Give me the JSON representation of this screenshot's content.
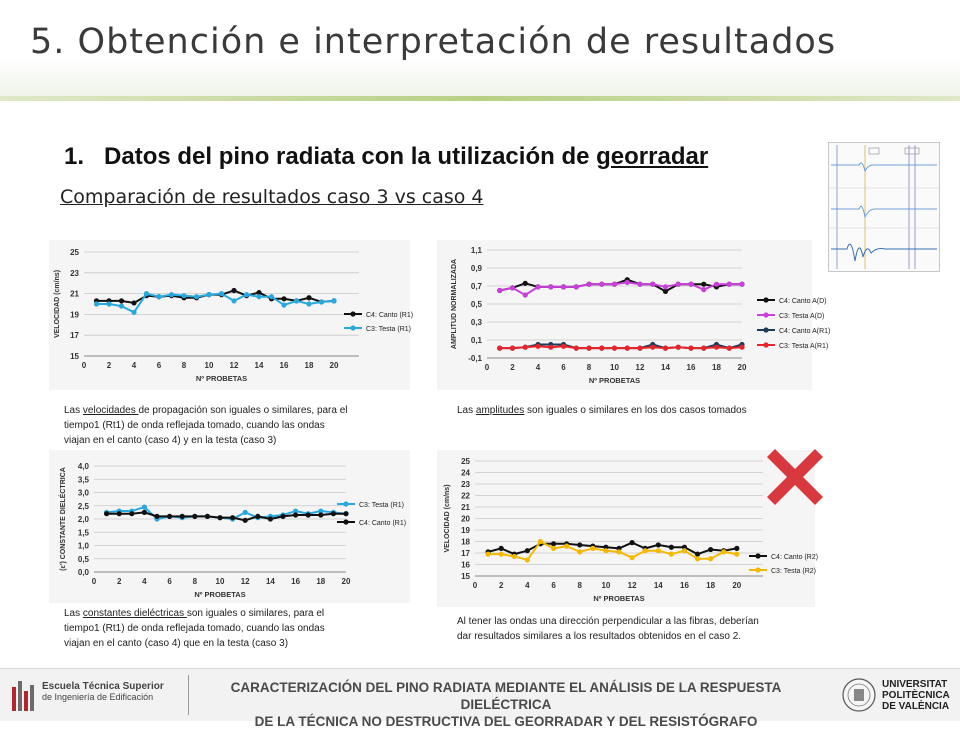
{
  "slide": {
    "title": "5. Obtención e interpretación de resultados",
    "heading_number": "1.",
    "heading_text": "Datos del pino radiata con la utilización de ",
    "heading_underlined": "georradar",
    "subtitle": "Comparación de resultados caso 3 vs caso 4"
  },
  "captions": {
    "c1_pre": "Las ",
    "c1_u": "velocidades ",
    "c1_rest1": "de propagación son iguales o similares, para el",
    "c1_line2": "tiempo1 (Rt1) de onda reflejada tomado, cuando las ondas",
    "c1_line3": "viajan en el canto (caso 4) y en la testa (caso 3)",
    "c2_pre": "Las ",
    "c2_u": "amplitudes",
    "c2_rest": " son iguales o similares en los dos casos tomados",
    "c3_pre": "Las ",
    "c3_u": "constantes dieléctricas ",
    "c3_rest1": "son iguales o similares, para el",
    "c3_line2": "tiempo1 (Rt1) de onda reflejada tomado, cuando las ondas",
    "c3_line3": "viajan en el canto (caso 4) que en la testa (caso 3)",
    "c4_line1": "Al tener las ondas una dirección perpendicular a las fibras, deberían",
    "c4_line2": "dar resultados similares a los resultados obtenidos en el caso 2."
  },
  "footer": {
    "school_line1": "Escuela Técnica Superior",
    "school_line2": "de Ingeniería de Edificación",
    "title_line1": "CARACTERIZACIÓN DEL PINO RADIATA MEDIANTE EL ANÁLISIS DE LA RESPUESTA DIELÉCTRICA",
    "title_line2": "DE LA TÉCNICA NO DESTRUCTIVA DEL GEORRADAR Y DEL RESISTÓGRAFO",
    "uni_line1": "UNIVERSITAT",
    "uni_line2": "POLITÈCNICA",
    "uni_line3": "DE VALÈNCIA"
  },
  "colors": {
    "black_series": "#111111",
    "cyan_series": "#29a8e0",
    "magenta_series": "#c83fd9",
    "red_series": "#e8242b",
    "yellow_series": "#f5b800",
    "x_mark": "#d9393e"
  },
  "chart_data": [
    {
      "type": "line",
      "ylabel": "VELOCIDAD (cm/ns)",
      "xlabel": "Nº PROBETAS",
      "ylim": [
        15,
        25
      ],
      "yticks": [
        15,
        17,
        19,
        21,
        23,
        25
      ],
      "xlim": [
        0,
        22
      ],
      "xticks": [
        0,
        2,
        4,
        6,
        8,
        10,
        12,
        14,
        16,
        18,
        20
      ],
      "x": [
        1,
        2,
        3,
        4,
        5,
        6,
        7,
        8,
        9,
        10,
        11,
        12,
        13,
        14,
        15,
        16,
        17,
        18,
        19,
        20
      ],
      "series": [
        {
          "name": "C4: Canto (R1)",
          "color": "#111111",
          "values": [
            20.3,
            20.3,
            20.3,
            20.1,
            20.8,
            20.7,
            20.8,
            20.6,
            20.6,
            20.9,
            20.9,
            21.3,
            20.8,
            21.1,
            20.5,
            20.5,
            20.3,
            20.6,
            20.2,
            20.3
          ]
        },
        {
          "name": "C3: Testa (R1)",
          "color": "#29a8e0",
          "values": [
            20.0,
            20.0,
            19.8,
            19.2,
            21.0,
            20.7,
            20.9,
            20.8,
            20.7,
            20.9,
            21.0,
            20.3,
            20.9,
            20.7,
            20.7,
            19.9,
            20.3,
            20.0,
            20.2,
            20.3
          ]
        }
      ]
    },
    {
      "type": "line",
      "ylabel": "AMPLITUD NORMALIZADA",
      "xlabel": "Nº PROBETAS",
      "ylim": [
        -0.1,
        1.1
      ],
      "yticks": [
        "-0,1",
        "0,1",
        "0,3",
        "0,5",
        "0,7",
        "0,9",
        "1,1"
      ],
      "ytick_values": [
        -0.1,
        0.1,
        0.3,
        0.5,
        0.7,
        0.9,
        1.1
      ],
      "xlim": [
        0,
        20
      ],
      "xticks": [
        0,
        2,
        4,
        6,
        8,
        10,
        12,
        14,
        16,
        18,
        20
      ],
      "x": [
        1,
        2,
        3,
        4,
        5,
        6,
        7,
        8,
        9,
        10,
        11,
        12,
        13,
        14,
        15,
        16,
        17,
        18,
        19,
        20
      ],
      "series": [
        {
          "name": "C4: Canto A(D)",
          "color": "#111111",
          "values": [
            0.65,
            0.68,
            0.73,
            0.69,
            0.69,
            0.69,
            0.69,
            0.72,
            0.72,
            0.72,
            0.77,
            0.72,
            0.72,
            0.64,
            0.72,
            0.72,
            0.72,
            0.69,
            0.72,
            0.72
          ]
        },
        {
          "name": "C3: Testa A(D)",
          "color": "#c83fd9",
          "values": [
            0.65,
            0.68,
            0.6,
            0.69,
            0.69,
            0.69,
            0.69,
            0.72,
            0.72,
            0.72,
            0.74,
            0.72,
            0.72,
            0.69,
            0.72,
            0.72,
            0.66,
            0.72,
            0.72,
            0.72
          ]
        },
        {
          "name": "C4: Canto A(R1)",
          "color": "#1d3c5a",
          "values": [
            0.01,
            0.01,
            0.02,
            0.05,
            0.05,
            0.05,
            0.01,
            0.01,
            0.01,
            0.01,
            0.01,
            0.01,
            0.05,
            0.01,
            0.02,
            0.01,
            0.01,
            0.05,
            0.01,
            0.05
          ]
        },
        {
          "name": "C3: Testa A(R1)",
          "color": "#e8242b",
          "values": [
            0.01,
            0.01,
            0.02,
            0.03,
            0.02,
            0.03,
            0.01,
            0.01,
            0.01,
            0.01,
            0.01,
            0.01,
            0.02,
            0.01,
            0.02,
            0.01,
            0.01,
            0.02,
            0.01,
            0.02
          ]
        }
      ]
    },
    {
      "type": "line",
      "ylabel": "(ε') CONSTANTE DIELÉCTRICA",
      "xlabel": "Nº PROBETAS",
      "ylim": [
        0,
        4
      ],
      "yticks": [
        "0,0",
        "0,5",
        "1,0",
        "1,5",
        "2,0",
        "2,5",
        "3,0",
        "3,5",
        "4,0"
      ],
      "ytick_values": [
        0,
        0.5,
        1,
        1.5,
        2,
        2.5,
        3,
        3.5,
        4
      ],
      "xlim": [
        0,
        20
      ],
      "xticks": [
        0,
        2,
        4,
        6,
        8,
        10,
        12,
        14,
        16,
        18,
        20
      ],
      "x": [
        1,
        2,
        3,
        4,
        5,
        6,
        7,
        8,
        9,
        10,
        11,
        12,
        13,
        14,
        15,
        16,
        17,
        18,
        19,
        20
      ],
      "series": [
        {
          "name": "C3: Testa (R1)",
          "color": "#29a8e0",
          "values": [
            2.25,
            2.3,
            2.3,
            2.45,
            2.0,
            2.1,
            2.05,
            2.1,
            2.1,
            2.05,
            2.0,
            2.25,
            2.05,
            2.1,
            2.15,
            2.3,
            2.2,
            2.3,
            2.25,
            2.2
          ]
        },
        {
          "name": "C4: Canto (R1)",
          "color": "#111111",
          "values": [
            2.2,
            2.2,
            2.2,
            2.25,
            2.1,
            2.1,
            2.1,
            2.1,
            2.1,
            2.05,
            2.05,
            1.95,
            2.1,
            2.0,
            2.1,
            2.15,
            2.15,
            2.15,
            2.2,
            2.2
          ]
        }
      ]
    },
    {
      "type": "line",
      "ylabel": "VELOCIDAD (cm/ns)",
      "xlabel": "Nº PROBETAS",
      "ylim": [
        15,
        25
      ],
      "yticks": [
        15,
        16,
        17,
        18,
        19,
        20,
        21,
        22,
        23,
        24,
        25
      ],
      "xlim": [
        0,
        22
      ],
      "xticks": [
        0,
        2,
        4,
        6,
        8,
        10,
        12,
        14,
        16,
        18,
        20
      ],
      "x": [
        1,
        2,
        3,
        4,
        5,
        6,
        7,
        8,
        9,
        10,
        11,
        12,
        13,
        14,
        15,
        16,
        17,
        18,
        19,
        20
      ],
      "series": [
        {
          "name": "C4: Canto (R2)",
          "color": "#111111",
          "values": [
            17.1,
            17.4,
            16.9,
            17.2,
            17.8,
            17.8,
            17.8,
            17.7,
            17.6,
            17.5,
            17.4,
            17.9,
            17.4,
            17.7,
            17.5,
            17.5,
            16.9,
            17.3,
            17.2,
            17.4
          ]
        },
        {
          "name": "C3: Testa (R2)",
          "color": "#f5b800",
          "values": [
            16.9,
            16.9,
            16.7,
            16.4,
            18.0,
            17.4,
            17.6,
            17.1,
            17.4,
            17.2,
            17.1,
            16.6,
            17.2,
            17.2,
            16.9,
            17.2,
            16.5,
            16.5,
            17.1,
            16.9
          ]
        }
      ]
    }
  ]
}
